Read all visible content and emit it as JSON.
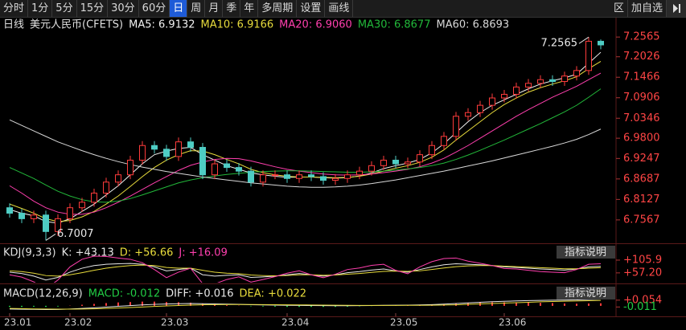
{
  "ui": {
    "toolbar": [
      "分时",
      "1分",
      "5分",
      "15分",
      "30分",
      "60分",
      "日",
      "周",
      "月",
      "季",
      "年",
      "多周期",
      "设置",
      "画线"
    ],
    "toolbar_right": [
      "区",
      "加自选"
    ]
  },
  "chart_data": [
    {
      "type": "candlestick",
      "title": "日线",
      "subtitle": "美元人民币(CFETS)",
      "categories": [
        "23.01",
        null,
        null,
        null,
        null,
        "23.02",
        null,
        null,
        null,
        null,
        null,
        null,
        null,
        "23.03",
        null,
        null,
        null,
        null,
        null,
        null,
        null,
        null,
        null,
        "23.04",
        null,
        null,
        null,
        null,
        null,
        null,
        null,
        null,
        "23.05",
        null,
        null,
        null,
        null,
        null,
        null,
        null,
        null,
        "23.06",
        null,
        null,
        null,
        null,
        null,
        null,
        null,
        null
      ],
      "open": [
        6.79,
        6.775,
        6.76,
        6.77,
        6.725,
        6.76,
        6.79,
        6.805,
        6.83,
        6.86,
        6.88,
        6.92,
        6.96,
        6.95,
        6.93,
        6.97,
        6.955,
        6.88,
        6.91,
        6.9,
        6.89,
        6.86,
        6.88,
        6.88,
        6.87,
        6.88,
        6.875,
        6.865,
        6.87,
        6.88,
        6.89,
        6.905,
        6.92,
        6.91,
        6.915,
        6.935,
        6.96,
        6.985,
        7.04,
        7.05,
        7.07,
        7.09,
        7.1,
        7.12,
        7.13,
        7.14,
        7.135,
        7.15,
        7.165,
        7.245
      ],
      "high": [
        6.802,
        6.787,
        6.782,
        6.782,
        6.772,
        6.802,
        6.817,
        6.842,
        6.872,
        6.892,
        6.932,
        6.972,
        6.972,
        6.962,
        6.982,
        6.982,
        6.967,
        6.922,
        6.922,
        6.912,
        6.902,
        6.892,
        6.892,
        6.892,
        6.892,
        6.892,
        6.887,
        6.882,
        6.892,
        6.902,
        6.917,
        6.932,
        6.932,
        6.927,
        6.947,
        6.972,
        6.997,
        7.052,
        7.062,
        7.082,
        7.102,
        7.112,
        7.132,
        7.142,
        7.152,
        7.152,
        7.162,
        7.177,
        7.2565,
        7.25
      ],
      "low": [
        6.763,
        6.748,
        6.748,
        6.7007,
        6.713,
        6.748,
        6.778,
        6.793,
        6.818,
        6.848,
        6.868,
        6.908,
        6.938,
        6.918,
        6.918,
        6.943,
        6.868,
        6.868,
        6.888,
        6.878,
        6.848,
        6.848,
        6.868,
        6.858,
        6.858,
        6.863,
        6.853,
        6.853,
        6.858,
        6.868,
        6.878,
        6.893,
        6.898,
        6.898,
        6.903,
        6.923,
        6.948,
        6.973,
        7.028,
        7.038,
        7.058,
        7.078,
        7.088,
        7.108,
        7.118,
        7.123,
        7.123,
        7.138,
        7.153,
        7.223
      ],
      "close": [
        6.775,
        6.76,
        6.77,
        6.725,
        6.76,
        6.79,
        6.805,
        6.83,
        6.86,
        6.88,
        6.92,
        6.96,
        6.95,
        6.93,
        6.97,
        6.955,
        6.88,
        6.91,
        6.9,
        6.89,
        6.86,
        6.88,
        6.88,
        6.87,
        6.88,
        6.875,
        6.865,
        6.87,
        6.88,
        6.89,
        6.905,
        6.92,
        6.91,
        6.915,
        6.935,
        6.96,
        6.985,
        7.04,
        7.05,
        7.07,
        7.09,
        7.1,
        7.12,
        7.13,
        7.14,
        7.135,
        7.15,
        7.165,
        7.245,
        7.235
      ],
      "up_color": "#ff3b3b",
      "down_color": "#4ecdc4",
      "series": [
        {
          "name": "MA5: 6.9132",
          "color": "#f2f2f2",
          "values": [
            6.785,
            6.775,
            6.768,
            6.752,
            6.748,
            6.76,
            6.78,
            6.8,
            6.825,
            6.85,
            6.88,
            6.91,
            6.935,
            6.945,
            6.952,
            6.955,
            6.935,
            6.92,
            6.905,
            6.895,
            6.885,
            6.88,
            6.876,
            6.873,
            6.874,
            6.874,
            6.872,
            6.871,
            6.872,
            6.877,
            6.885,
            6.897,
            6.905,
            6.912,
            6.922,
            6.94,
            6.965,
            6.995,
            7.025,
            7.05,
            7.07,
            7.085,
            7.1,
            7.115,
            7.128,
            7.137,
            7.145,
            7.155,
            7.185,
            7.215
          ]
        },
        {
          "name": "MA10: 6.9166",
          "color": "#e8dc3c",
          "values": [
            6.8,
            6.788,
            6.775,
            6.76,
            6.752,
            6.755,
            6.765,
            6.78,
            6.8,
            6.822,
            6.848,
            6.875,
            6.9,
            6.92,
            6.935,
            6.946,
            6.945,
            6.935,
            6.922,
            6.91,
            6.895,
            6.886,
            6.88,
            6.876,
            6.874,
            6.874,
            6.873,
            6.872,
            6.873,
            6.876,
            6.882,
            6.89,
            6.898,
            6.905,
            6.914,
            6.928,
            6.948,
            6.975,
            7.0,
            7.025,
            7.05,
            7.072,
            7.09,
            7.106,
            7.118,
            7.128,
            7.137,
            7.148,
            7.17,
            7.19
          ]
        },
        {
          "name": "MA20: 6.9060",
          "color": "#ff3fae",
          "values": [
            6.85,
            6.83,
            6.808,
            6.79,
            6.778,
            6.772,
            6.772,
            6.778,
            6.79,
            6.805,
            6.822,
            6.84,
            6.858,
            6.875,
            6.892,
            6.906,
            6.915,
            6.922,
            6.925,
            6.924,
            6.918,
            6.91,
            6.902,
            6.895,
            6.89,
            6.886,
            6.882,
            6.88,
            6.879,
            6.88,
            6.882,
            6.886,
            6.89,
            6.895,
            6.902,
            6.912,
            6.925,
            6.942,
            6.96,
            6.98,
            7.0,
            7.02,
            7.04,
            7.058,
            7.075,
            7.092,
            7.107,
            7.122,
            7.14,
            7.158
          ]
        },
        {
          "name": "MA30: 6.8677",
          "color": "#22b83a",
          "values": [
            6.9,
            6.885,
            6.87,
            6.852,
            6.835,
            6.822,
            6.812,
            6.806,
            6.805,
            6.808,
            6.815,
            6.825,
            6.836,
            6.847,
            6.858,
            6.866,
            6.872,
            6.877,
            6.881,
            6.884,
            6.887,
            6.889,
            6.89,
            6.891,
            6.891,
            6.89,
            6.889,
            6.888,
            6.887,
            6.887,
            6.888,
            6.89,
            6.893,
            6.896,
            6.9,
            6.905,
            6.912,
            6.922,
            6.934,
            6.947,
            6.961,
            6.975,
            6.99,
            7.005,
            7.02,
            7.036,
            7.052,
            7.07,
            7.092,
            7.115
          ]
        },
        {
          "name": "MA60: 6.8693",
          "color": "#d8d8d8",
          "values": [
            7.03,
            7.015,
            7.0,
            6.985,
            6.97,
            6.958,
            6.946,
            6.935,
            6.925,
            6.916,
            6.908,
            6.901,
            6.895,
            6.889,
            6.884,
            6.879,
            6.874,
            6.87,
            6.866,
            6.862,
            6.858,
            6.855,
            6.852,
            6.849,
            6.847,
            6.846,
            6.846,
            6.847,
            6.849,
            6.852,
            6.856,
            6.861,
            6.866,
            6.872,
            6.878,
            6.884,
            6.89,
            6.897,
            6.904,
            6.911,
            6.918,
            6.926,
            6.934,
            6.942,
            6.95,
            6.958,
            6.967,
            6.977,
            6.99,
            7.005
          ]
        }
      ],
      "max_label": "7.2565",
      "min_label": "6.7007",
      "ylim": [
        6.695,
        7.27
      ],
      "yticks": [
        7.2565,
        7.2026,
        7.1466,
        7.0906,
        7.0346,
        {
          "value": 6.98,
          "label": "6.9800"
        },
        6.9247,
        6.8687,
        6.8127,
        6.7567
      ],
      "tick_color": "#ff4545"
    },
    {
      "type": "line",
      "title": "KDJ(9,3,3)",
      "button": "指标说明",
      "series": [
        {
          "name": "K: +43.13",
          "color": "#e8e8e8",
          "values": [
            60,
            55,
            45,
            30,
            40,
            60,
            75,
            85,
            90,
            92,
            93,
            90,
            80,
            65,
            70,
            75,
            50,
            45,
            48,
            50,
            40,
            42,
            45,
            50,
            55,
            50,
            45,
            50,
            58,
            62,
            68,
            72,
            65,
            60,
            70,
            80,
            88,
            92,
            90,
            88,
            85,
            80,
            78,
            75,
            72,
            70,
            68,
            72,
            80,
            82
          ]
        },
        {
          "name": "D: +56.66",
          "color": "#e8dc3c",
          "values": [
            65,
            62,
            56,
            47,
            45,
            50,
            58,
            67,
            75,
            81,
            85,
            87,
            85,
            78,
            75,
            75,
            67,
            60,
            56,
            54,
            49,
            47,
            46,
            47,
            50,
            50,
            48,
            49,
            52,
            55,
            59,
            63,
            64,
            63,
            65,
            70,
            76,
            81,
            84,
            85,
            85,
            83,
            81,
            79,
            77,
            75,
            73,
            73,
            75,
            77
          ]
        },
        {
          "name": "J: +16.09",
          "color": "#ff3fae",
          "values": [
            50,
            41,
            23,
            -4,
            30,
            80,
            109,
            121,
            120,
            114,
            109,
            96,
            70,
            39,
            60,
            75,
            16,
            15,
            32,
            42,
            22,
            32,
            43,
            56,
            65,
            50,
            39,
            52,
            70,
            76,
            86,
            90,
            67,
            54,
            80,
            100,
            112,
            114,
            102,
            94,
            85,
            74,
            72,
            67,
            62,
            60,
            58,
            70,
            90,
            92
          ]
        }
      ],
      "ylim": [
        20,
        164
      ],
      "yticks": [
        {
          "value": 105.9,
          "label": "+105.9"
        },
        {
          "value": 57.2,
          "label": "+57.20"
        }
      ],
      "tick_color": "#ff4545"
    },
    {
      "type": "macd",
      "title": "MACD(12,26,9)",
      "button": "指标说明",
      "up_color": "#ff3b3b",
      "down_color": "#22cc44",
      "series": [
        {
          "name": "MACD: -0.012",
          "color": "#22cc44",
          "style": "bar",
          "values": [
            -0.01,
            -0.01,
            -0.008,
            -0.01,
            -0.006,
            0.002,
            0.01,
            0.018,
            0.026,
            0.032,
            0.036,
            0.04,
            0.04,
            0.036,
            0.034,
            0.03,
            0.02,
            0.012,
            0.006,
            0.002,
            -0.004,
            -0.006,
            -0.008,
            -0.01,
            -0.01,
            -0.01,
            -0.01,
            -0.01,
            -0.008,
            -0.004,
            -0.002,
            0.002,
            0.004,
            0.004,
            0.008,
            0.012,
            0.016,
            0.024,
            0.028,
            0.032,
            0.034,
            0.034,
            0.034,
            0.032,
            0.028,
            0.026,
            0.022,
            0.02,
            0.022,
            0.024
          ]
        },
        {
          "name": "DIFF: +0.016",
          "color": "#e8e8e8",
          "values": [
            -0.03,
            -0.032,
            -0.033,
            -0.035,
            -0.034,
            -0.03,
            -0.025,
            -0.019,
            -0.012,
            -0.005,
            0.002,
            0.009,
            0.014,
            0.017,
            0.02,
            0.022,
            0.02,
            0.018,
            0.016,
            0.014,
            0.011,
            0.009,
            0.007,
            0.005,
            0.004,
            0.003,
            0.002,
            0.001,
            0.001,
            0.002,
            0.003,
            0.005,
            0.006,
            0.007,
            0.009,
            0.012,
            0.016,
            0.022,
            0.028,
            0.034,
            0.039,
            0.043,
            0.047,
            0.05,
            0.052,
            0.054,
            0.055,
            0.056,
            0.06,
            0.064
          ]
        },
        {
          "name": "DEA: +0.022",
          "color": "#e8dc3c",
          "values": [
            -0.025,
            -0.027,
            -0.029,
            -0.03,
            -0.031,
            -0.031,
            -0.03,
            -0.028,
            -0.025,
            -0.021,
            -0.016,
            -0.011,
            -0.006,
            -0.001,
            0.003,
            0.007,
            0.01,
            0.012,
            0.013,
            0.013,
            0.013,
            0.012,
            0.011,
            0.01,
            0.009,
            0.008,
            0.007,
            0.006,
            0.005,
            0.004,
            0.004,
            0.004,
            0.004,
            0.005,
            0.005,
            0.006,
            0.008,
            0.01,
            0.014,
            0.018,
            0.022,
            0.026,
            0.03,
            0.034,
            0.038,
            0.041,
            0.044,
            0.046,
            0.049,
            0.052
          ]
        }
      ],
      "ylim": [
        -0.1,
        0.19
      ],
      "yticks": [
        {
          "value": 0.054,
          "label": "+0.054"
        },
        {
          "value": -0.011,
          "label": "-0.011"
        }
      ],
      "tick_color": "#ff4545"
    }
  ]
}
